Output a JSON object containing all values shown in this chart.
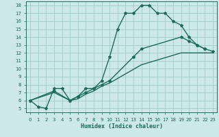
{
  "xlabel": "Humidex (Indice chaleur)",
  "bg_color": "#cce8e8",
  "grid_color": "#a0c8c8",
  "line_color": "#1a6b5a",
  "xlim": [
    -0.5,
    23.5
  ],
  "ylim": [
    4.5,
    18.5
  ],
  "xticks": [
    0,
    1,
    2,
    3,
    4,
    5,
    6,
    7,
    8,
    9,
    10,
    11,
    12,
    13,
    14,
    15,
    16,
    17,
    18,
    19,
    20,
    21,
    22,
    23
  ],
  "yticks": [
    5,
    6,
    7,
    8,
    9,
    10,
    11,
    12,
    13,
    14,
    15,
    16,
    17,
    18
  ],
  "line1_x": [
    0,
    1,
    2,
    3,
    4,
    5,
    6,
    7,
    8,
    9,
    10,
    11,
    12,
    13,
    14,
    15,
    16,
    17,
    18,
    19,
    20,
    21,
    22
  ],
  "line1_y": [
    6,
    5.2,
    5.0,
    7.5,
    7.5,
    6.0,
    6.5,
    7.5,
    7.5,
    8.5,
    11.5,
    15.0,
    17.0,
    17.0,
    18.0,
    18.0,
    17.0,
    17.0,
    16.0,
    15.5,
    14.0,
    13.0,
    12.5
  ],
  "line2_x": [
    0,
    3,
    5,
    6,
    7,
    8,
    9,
    10,
    13,
    14,
    19,
    20,
    21,
    22,
    23
  ],
  "line2_y": [
    6,
    7.2,
    6.0,
    6.5,
    7.0,
    7.5,
    8.0,
    8.5,
    11.5,
    12.5,
    14.0,
    13.5,
    13.0,
    12.5,
    12.2
  ],
  "line3_x": [
    0,
    3,
    5,
    6,
    7,
    8,
    9,
    10,
    14,
    19,
    22,
    23
  ],
  "line3_y": [
    6,
    7.0,
    6.0,
    6.2,
    6.8,
    7.2,
    7.8,
    8.2,
    10.5,
    12.0,
    12.0,
    12.0
  ],
  "marker_size": 3,
  "line_width": 1.0
}
